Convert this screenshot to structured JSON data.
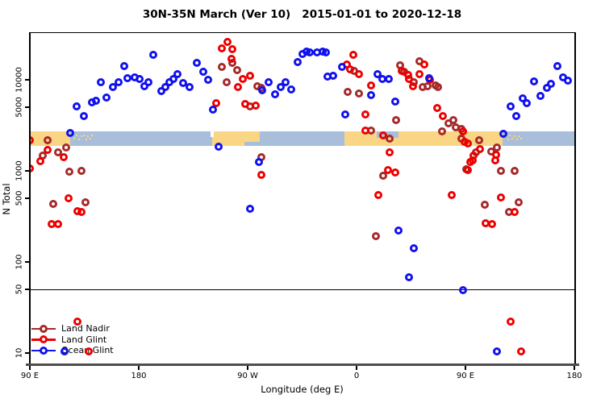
{
  "title": "30N-35N March (Ver 10)   2015-01-01 to 2020-12-18",
  "chart_data": {
    "type": "scatter",
    "title": "30N-35N March (Ver 10)   2015-01-01 to 2020-12-18",
    "xlabel": "Longitude (deg E)",
    "ylabel": "N Total",
    "x_axis": {
      "note": "axis spans 450 degrees of longitude starting at 90E and wrapping past 180 twice",
      "span_deg": 450,
      "ticks": [
        {
          "deg": 0,
          "label": "90 E"
        },
        {
          "deg": 90,
          "label": "180"
        },
        {
          "deg": 180,
          "label": "90 W"
        },
        {
          "deg": 270,
          "label": "0"
        },
        {
          "deg": 360,
          "label": "90 E"
        },
        {
          "deg": 450,
          "label": "180"
        }
      ]
    },
    "y_axis": {
      "scale": "log10",
      "range": [
        7,
        33000
      ],
      "ticks": [
        {
          "v": 10000,
          "label": "10000"
        },
        {
          "v": 5000,
          "label": "5000"
        },
        {
          "v": 1000,
          "label": "1000"
        },
        {
          "v": 500,
          "label": "500"
        },
        {
          "v": 100,
          "label": "100"
        },
        {
          "v": 50,
          "label": "50"
        },
        {
          "v": 10,
          "label": "10"
        }
      ]
    },
    "hline_value": 50,
    "grid": false,
    "legend_position": "bottom-left",
    "map_band": {
      "note": "world land/ocean strip for 30N-35N drawn across plot",
      "value_range": [
        1880,
        2715
      ],
      "land_color": "#F9D584",
      "ocean_color": "#A9BEDA",
      "segments": [
        {
          "type": "land",
          "from": 0,
          "to": 33.3
        },
        {
          "type": "ocean",
          "from": 33.3,
          "to": 150.5
        },
        {
          "type": "land",
          "from": 150.5,
          "to": 190
        },
        {
          "type": "ocean",
          "from": 190,
          "to": 260
        },
        {
          "type": "land",
          "from": 260,
          "to": 390.7
        },
        {
          "type": "ocean",
          "from": 390.7,
          "to": 450
        }
      ],
      "overlays": [
        {
          "kind": "ocean",
          "from": 286.7,
          "to": 304.7,
          "pos": "top",
          "frac": 0.45
        },
        {
          "kind": "ocean",
          "from": 177,
          "to": 190,
          "pos": "bottom",
          "frac": 0.3
        },
        {
          "kind": "white",
          "from": 149.3,
          "to": 152.3,
          "pos": "top",
          "frac": 0.4
        }
      ],
      "island_speckles": [
        [
          34.5,
          0.25
        ],
        [
          36,
          0.45
        ],
        [
          38,
          0.2
        ],
        [
          40,
          0.5
        ],
        [
          42,
          0.3
        ],
        [
          44,
          0.25
        ],
        [
          46,
          0.5
        ],
        [
          47.5,
          0.3
        ],
        [
          49,
          0.45
        ],
        [
          50.5,
          0.25
        ],
        [
          151.5,
          0.55
        ],
        [
          152.5,
          0.3
        ],
        [
          153.5,
          0.45
        ],
        [
          393,
          0.3
        ],
        [
          394.5,
          0.5
        ],
        [
          396,
          0.25
        ],
        [
          398,
          0.45
        ],
        [
          400,
          0.3
        ],
        [
          402,
          0.5
        ],
        [
          403.5,
          0.3
        ],
        [
          405,
          0.45
        ]
      ]
    },
    "series": [
      {
        "name": "Land Nadir",
        "color": "#A52A2A",
        "points": [
          [
            14.7,
            2170
          ],
          [
            10.7,
            1470
          ],
          [
            30,
            1810
          ],
          [
            23.3,
            1600
          ],
          [
            32.7,
            980
          ],
          [
            42.7,
            990
          ],
          [
            19.3,
            430
          ],
          [
            46,
            450
          ],
          [
            158.7,
            13900
          ],
          [
            167.3,
            15400
          ],
          [
            171.3,
            12800
          ],
          [
            162.7,
            9400
          ],
          [
            188,
            8500
          ],
          [
            191.3,
            8150
          ],
          [
            182,
            5100
          ],
          [
            191.3,
            1410
          ],
          [
            262.7,
            7350
          ],
          [
            272,
            7060
          ],
          [
            268,
            12500
          ],
          [
            306,
            14400
          ],
          [
            309.3,
            12300
          ],
          [
            322,
            16000
          ],
          [
            317.3,
            9400
          ],
          [
            324.7,
            8300
          ],
          [
            328.7,
            8500
          ],
          [
            335.3,
            8700
          ],
          [
            337.3,
            8300
          ],
          [
            302.7,
            3600
          ],
          [
            282,
            2770
          ],
          [
            297.3,
            2260
          ],
          [
            286,
            192
          ],
          [
            346,
            3330
          ],
          [
            350,
            3600
          ],
          [
            340.7,
            2720
          ],
          [
            352,
            3000
          ],
          [
            356.7,
            2900
          ],
          [
            356.7,
            2260
          ],
          [
            371.3,
            2170
          ],
          [
            368.7,
            1600
          ],
          [
            381.3,
            1620
          ],
          [
            386,
            1790
          ],
          [
            360.7,
            1040
          ],
          [
            389.3,
            1000
          ],
          [
            400.7,
            1000
          ],
          [
            376,
            425
          ],
          [
            404,
            450
          ],
          [
            396,
            355
          ],
          [
            292,
            885
          ]
        ]
      },
      {
        "name": "Land Glint",
        "color": "#EE0000",
        "points": [
          [
            0,
            2170
          ],
          [
            14.7,
            1700
          ],
          [
            8.7,
            1280
          ],
          [
            0,
            1060
          ],
          [
            28,
            1410
          ],
          [
            32,
            500
          ],
          [
            39.3,
            360
          ],
          [
            42.7,
            355
          ],
          [
            18,
            261
          ],
          [
            23.3,
            258
          ],
          [
            163.3,
            26000
          ],
          [
            158.7,
            22100
          ],
          [
            167.3,
            21900
          ],
          [
            166.7,
            17000
          ],
          [
            176,
            10200
          ],
          [
            182,
            11100
          ],
          [
            172,
            8300
          ],
          [
            154,
            5540
          ],
          [
            178,
            5430
          ],
          [
            186.7,
            5200
          ],
          [
            191.3,
            900
          ],
          [
            267.3,
            18800
          ],
          [
            262,
            14700
          ],
          [
            264.7,
            13000
          ],
          [
            272,
            11500
          ],
          [
            282,
            8700
          ],
          [
            307.3,
            12500
          ],
          [
            312.7,
            11300
          ],
          [
            313.3,
            10200
          ],
          [
            326,
            14700
          ],
          [
            322,
            11500
          ],
          [
            316.7,
            8500
          ],
          [
            330.7,
            10000
          ],
          [
            336.7,
            4900
          ],
          [
            277.3,
            4160
          ],
          [
            277.3,
            2770
          ],
          [
            292,
            2450
          ],
          [
            297.3,
            1600
          ],
          [
            296,
            1020
          ],
          [
            302,
            960
          ],
          [
            288,
            540
          ],
          [
            341.3,
            4000
          ],
          [
            358,
            2720
          ],
          [
            359.3,
            2080
          ],
          [
            362,
            2000
          ],
          [
            372,
            1730
          ],
          [
            366,
            1300
          ],
          [
            364,
            1250
          ],
          [
            385.3,
            1490
          ],
          [
            384.7,
            1300
          ],
          [
            366.7,
            1470
          ],
          [
            362,
            1020
          ],
          [
            348.7,
            540
          ],
          [
            389.3,
            515
          ],
          [
            376.7,
            266
          ],
          [
            382,
            259
          ],
          [
            400.7,
            355
          ],
          [
            397.3,
            22
          ],
          [
            406,
            10.4
          ],
          [
            39.3,
            22
          ],
          [
            48.7,
            10.4
          ]
        ]
      },
      {
        "name": "Ocean Glint",
        "color": "#1111EE",
        "points": [
          [
            102,
            18800
          ],
          [
            78,
            14100
          ],
          [
            58.7,
            9400
          ],
          [
            73.3,
            9400
          ],
          [
            80.7,
            10400
          ],
          [
            86.7,
            10600
          ],
          [
            90.7,
            10200
          ],
          [
            94.7,
            8500
          ],
          [
            98,
            9400
          ],
          [
            108.7,
            7500
          ],
          [
            112,
            8300
          ],
          [
            68.7,
            8300
          ],
          [
            63.3,
            6400
          ],
          [
            54.7,
            5900
          ],
          [
            51.3,
            5650
          ],
          [
            38.7,
            5100
          ],
          [
            44.7,
            4000
          ],
          [
            33.3,
            2600
          ],
          [
            138,
            15400
          ],
          [
            143.3,
            12300
          ],
          [
            122,
            11500
          ],
          [
            118.7,
            10200
          ],
          [
            115.3,
            9400
          ],
          [
            126.7,
            9200
          ],
          [
            132,
            8300
          ],
          [
            147.3,
            10000
          ],
          [
            197.3,
            9400
          ],
          [
            192,
            7700
          ],
          [
            211.3,
            9400
          ],
          [
            207.3,
            8300
          ],
          [
            216,
            7800
          ],
          [
            202.7,
            6900
          ],
          [
            221.3,
            15600
          ],
          [
            225.3,
            19200
          ],
          [
            151.3,
            4700
          ],
          [
            156,
            1840
          ],
          [
            189.3,
            1250
          ],
          [
            182,
            385
          ],
          [
            228.7,
            20400
          ],
          [
            231.3,
            19900
          ],
          [
            237.3,
            19900
          ],
          [
            242,
            20200
          ],
          [
            244.7,
            19900
          ],
          [
            258,
            13900
          ],
          [
            246,
            10800
          ],
          [
            250.7,
            11100
          ],
          [
            287.3,
            11500
          ],
          [
            291.3,
            10200
          ],
          [
            296.7,
            10200
          ],
          [
            282,
            6800
          ],
          [
            302,
            5800
          ],
          [
            260.7,
            4200
          ],
          [
            330,
            10400
          ],
          [
            436,
            14100
          ],
          [
            416.7,
            9600
          ],
          [
            440.7,
            10600
          ],
          [
            444.7,
            9800
          ],
          [
            430.7,
            9000
          ],
          [
            427.3,
            8200
          ],
          [
            422,
            6650
          ],
          [
            407.3,
            6300
          ],
          [
            410.7,
            5500
          ],
          [
            397.3,
            5100
          ],
          [
            402,
            4000
          ],
          [
            391.3,
            2550
          ],
          [
            304.7,
            220
          ],
          [
            317.3,
            141
          ],
          [
            313.3,
            68
          ],
          [
            358,
            49
          ],
          [
            28.7,
            10.4
          ],
          [
            386,
            10.4
          ]
        ]
      }
    ]
  }
}
